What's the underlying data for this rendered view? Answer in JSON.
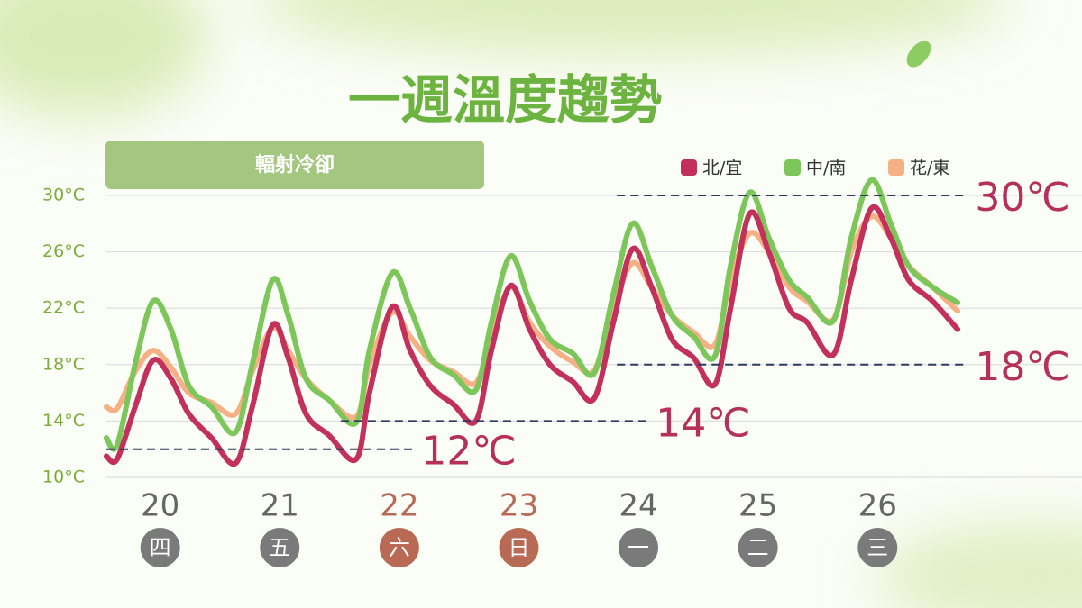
{
  "chart_data": {
    "type": "line",
    "title": "一週溫度趨勢",
    "subtitle": "輻射冷卻",
    "x": [
      19.55,
      19.64,
      19.79,
      19.94,
      20.09,
      20.24,
      20.43,
      20.63,
      20.77,
      20.94,
      21.07,
      21.22,
      21.41,
      21.64,
      21.75,
      21.94,
      22.09,
      22.26,
      22.45,
      22.64,
      22.77,
      22.93,
      23.09,
      23.26,
      23.45,
      23.63,
      23.79,
      23.95,
      24.11,
      24.28,
      24.46,
      24.64,
      24.77,
      24.93,
      25.09,
      25.26,
      25.41,
      25.63,
      25.78,
      25.95,
      26.11,
      26.26,
      26.46,
      26.67
    ],
    "series": [
      {
        "name": "北/宜",
        "color": "#c2305b",
        "values": [
          11.5,
          11.3,
          15,
          18.3,
          17,
          14.5,
          12.8,
          11.0,
          15,
          20.8,
          18.5,
          14.5,
          13,
          11.3,
          16,
          22.1,
          19,
          16.5,
          15.2,
          14,
          19,
          23.6,
          20.5,
          18,
          16.8,
          15.6,
          21,
          26.2,
          23.5,
          19.8,
          18.5,
          16.6,
          22,
          28.7,
          26,
          22,
          21,
          18.7,
          24,
          29.1,
          27,
          24,
          22.5,
          20.5
        ]
      },
      {
        "name": "中/南",
        "color": "#7dc65a",
        "values": [
          12.8,
          12.3,
          18,
          22.5,
          20.5,
          16.5,
          15,
          13.2,
          18,
          24,
          21.5,
          17,
          15.5,
          13.9,
          19,
          24.5,
          22,
          18.5,
          17.3,
          16.2,
          21,
          25.7,
          22.5,
          19.8,
          18.8,
          17.4,
          23,
          28,
          25,
          21.5,
          20,
          18.6,
          25,
          30.2,
          27,
          24,
          22.8,
          21.1,
          27,
          31.1,
          28,
          25,
          23.5,
          22.4
        ]
      },
      {
        "name": "花/東",
        "color": "#f5b185",
        "values": [
          15,
          14.9,
          17.5,
          19,
          17.8,
          16,
          15.3,
          14.5,
          17.5,
          20.6,
          19,
          17,
          15.5,
          14.3,
          18,
          21.7,
          20,
          18.3,
          17.5,
          16.7,
          20,
          23.5,
          21,
          19.3,
          18.2,
          17.6,
          22,
          25.2,
          23.5,
          21.5,
          20.3,
          19.4,
          24,
          27.3,
          26,
          23.5,
          22.5,
          21.2,
          26,
          28.5,
          27,
          25,
          23.5,
          21.8
        ]
      }
    ],
    "xlim": [
      19.55,
      27.71
    ],
    "xticks": [
      20,
      21,
      22,
      23,
      24,
      25,
      26
    ],
    "weekdays": [
      "四",
      "五",
      "六",
      "日",
      "一",
      "二",
      "三"
    ],
    "weekday_colors": [
      "#7a7a7a",
      "#7a7a7a",
      "#b86a55",
      "#b86a55",
      "#7a7a7a",
      "#7a7a7a",
      "#7a7a7a"
    ],
    "ylim": [
      10,
      33
    ],
    "yticks": [
      {
        "value": 10,
        "label": "10°C"
      },
      {
        "value": 14,
        "label": "14°C"
      },
      {
        "value": 18,
        "label": "18°C"
      },
      {
        "value": 22,
        "label": "22°C"
      },
      {
        "value": 26,
        "label": "26°C"
      },
      {
        "value": 30,
        "label": "30°C"
      }
    ],
    "grid": true,
    "ref_lines": [
      {
        "value": 12,
        "label": "12℃",
        "x": [
          19.55,
          22.13
        ]
      },
      {
        "value": 14,
        "label": "14℃",
        "x": [
          21.51,
          24.09
        ]
      },
      {
        "value": 18,
        "label": "18℃",
        "x": [
          23.82,
          26.76
        ]
      },
      {
        "value": 30,
        "label": "30℃",
        "x": [
          23.82,
          26.76
        ]
      }
    ]
  }
}
